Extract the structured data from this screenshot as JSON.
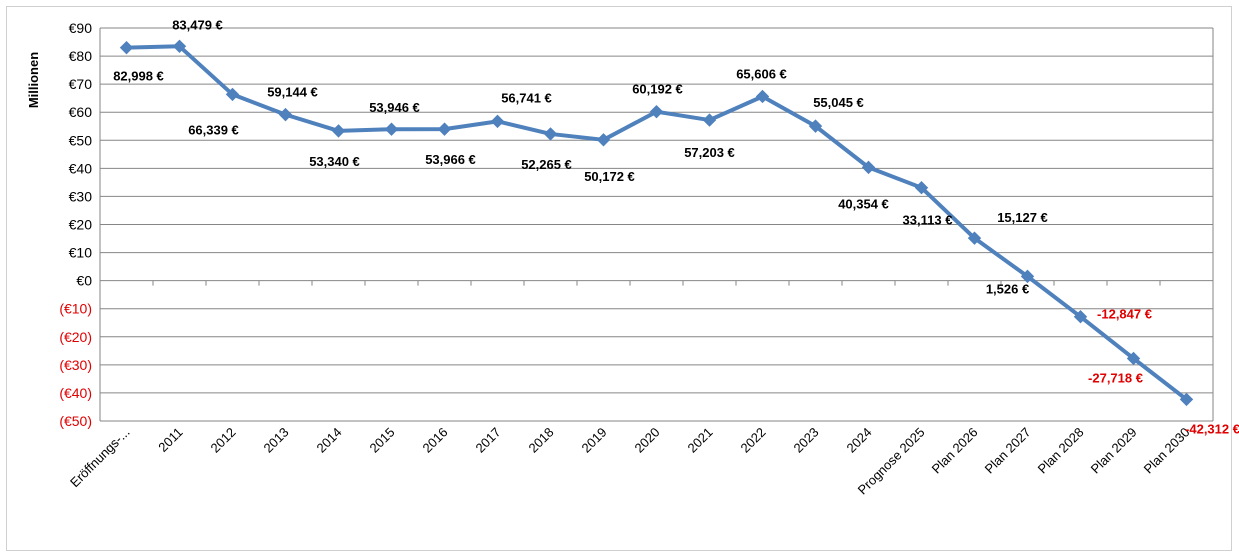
{
  "chart_data": {
    "type": "line",
    "title": "",
    "xlabel": "",
    "ylabel": "Millionen",
    "ylim": [
      -50,
      90
    ],
    "grid": true,
    "legend": "none",
    "line_color": "#4f81bd",
    "negative_label_color": "#e00000",
    "y_ticks": [
      90,
      80,
      70,
      60,
      50,
      40,
      30,
      20,
      10,
      0,
      -10,
      -20,
      -30,
      -40,
      -50
    ],
    "y_tick_labels": [
      "€90",
      "€80",
      "€70",
      "€60",
      "€50",
      "€40",
      "€30",
      "€20",
      "€10",
      "€0",
      "(€10)",
      "(€20)",
      "(€30)",
      "(€40)",
      "(€50)"
    ],
    "categories": [
      "Eröffnungs-...",
      "2011",
      "2012",
      "2013",
      "2014",
      "2015",
      "2016",
      "2017",
      "2018",
      "2019",
      "2020",
      "2021",
      "2022",
      "2023",
      "2024",
      "Prognose 2025",
      "Plan 2026",
      "Plan 2027",
      "Plan 2028",
      "Plan 2029",
      "Plan 2030"
    ],
    "series": [
      {
        "values": [
          82.998,
          83.479,
          66.339,
          59.144,
          53.34,
          53.946,
          53.966,
          56.741,
          52.265,
          50.172,
          60.192,
          57.203,
          65.606,
          55.045,
          40.354,
          33.113,
          15.127,
          1.526,
          -12.847,
          -27.718,
          -42.312
        ],
        "labels": [
          "82,998 €",
          "83,479 €",
          "66,339 €",
          "59,144 €",
          "53,340 €",
          "53,946 €",
          "53,966 €",
          "56,741 €",
          "52,265 €",
          "50,172 €",
          "60,192 €",
          "57,203 €",
          "65,606 €",
          "55,045 €",
          "40,354 €",
          "33,113 €",
          "15,127 €",
          "1,526 €",
          "-12,847 €",
          "-27,718 €",
          "-42,312 €"
        ]
      }
    ]
  }
}
